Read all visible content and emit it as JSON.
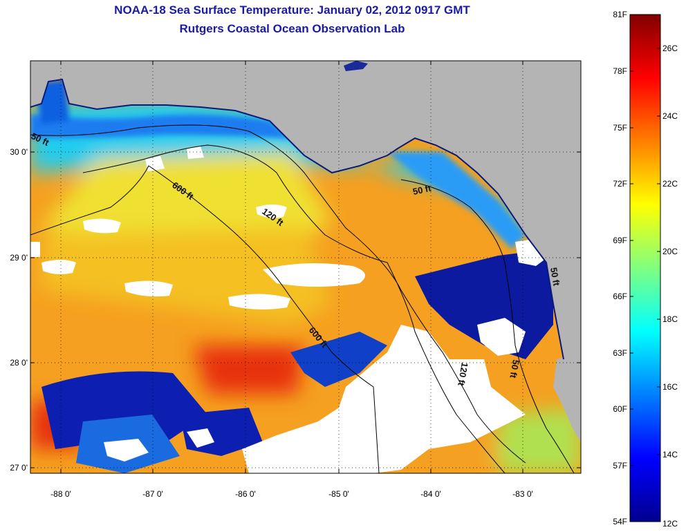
{
  "header": {
    "title": "NOAA-18 Sea Surface Temperature:  January 02, 2012 0917 GMT",
    "subtitle": "Rutgers Coastal Ocean Observation Lab"
  },
  "map": {
    "lon_ticks": [
      "-88 0'",
      "-87 0'",
      "-86 0'",
      "-85 0'",
      "-84 0'",
      "-83 0'"
    ],
    "lat_ticks": [
      "30 0'",
      "29 0'",
      "28 0'",
      "27 0'"
    ],
    "contour_labels": [
      "50 ft",
      "600 ft",
      "120 ft",
      "50 ft",
      "600 ft",
      "120 ft",
      "50 ft",
      "50 ft"
    ]
  },
  "colorbar": {
    "fahrenheit_labels": [
      "81F",
      "78F",
      "75F",
      "72F",
      "69F",
      "66F",
      "63F",
      "60F",
      "57F",
      "54F"
    ],
    "celsius_labels": [
      "26C",
      "24C",
      "22C",
      "20C",
      "18C",
      "16C",
      "14C",
      "12C"
    ]
  },
  "colors": {
    "land": "#b4b4b4",
    "cloud": "#ffffff",
    "title": "#1a1aa6"
  }
}
